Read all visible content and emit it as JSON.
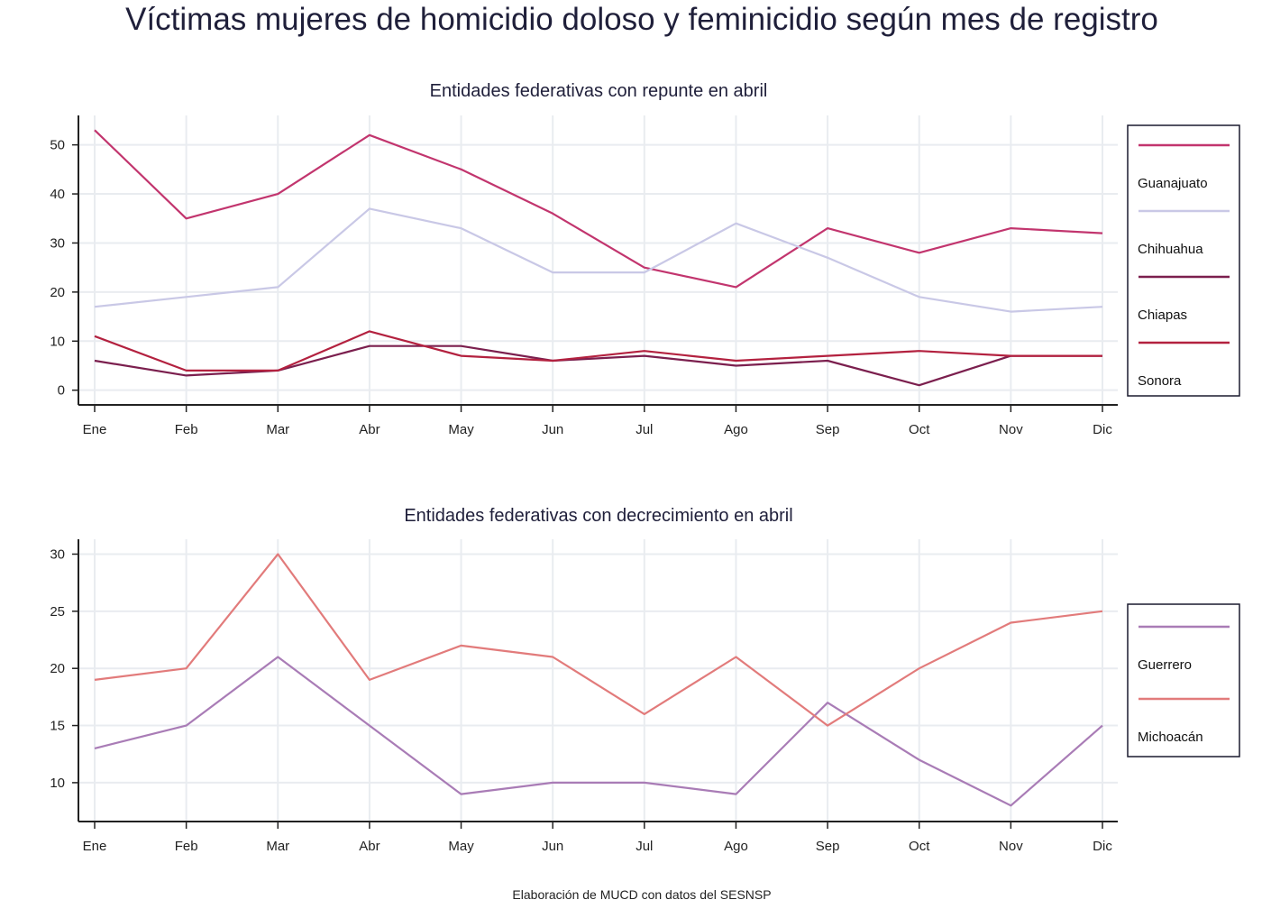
{
  "title": "Víctimas mujeres de homicidio doloso y feminicidio según mes de registro",
  "footer": "Elaboración de MUCD con datos del SESNSP",
  "chart_data": [
    {
      "type": "line",
      "title": "Entidades federativas con repunte en abril",
      "xlabel": "",
      "ylabel": "",
      "categories": [
        "Ene",
        "Feb",
        "Mar",
        "Abr",
        "May",
        "Jun",
        "Jul",
        "Ago",
        "Sep",
        "Oct",
        "Nov",
        "Dic"
      ],
      "ylim": [
        -3,
        56
      ],
      "yticks": [
        0,
        10,
        20,
        30,
        40,
        50
      ],
      "grid": true,
      "legend_position": "right",
      "series": [
        {
          "name": "Guanajuato",
          "color": "#c2356e",
          "values": [
            53,
            35,
            40,
            52,
            45,
            36,
            25,
            21,
            33,
            28,
            33,
            32
          ]
        },
        {
          "name": "Chihuahua",
          "color": "#c9c8e6",
          "values": [
            17,
            19,
            21,
            37,
            33,
            24,
            24,
            34,
            27,
            19,
            16,
            17
          ]
        },
        {
          "name": "Chiapas",
          "color": "#7b1f4e",
          "values": [
            6,
            3,
            4,
            9,
            9,
            6,
            7,
            5,
            6,
            1,
            7,
            7
          ]
        },
        {
          "name": "Sonora",
          "color": "#b3213f",
          "values": [
            11,
            4,
            4,
            12,
            7,
            6,
            8,
            6,
            7,
            8,
            7,
            7
          ]
        }
      ]
    },
    {
      "type": "line",
      "title": "Entidades federativas con decrecimiento en abril",
      "xlabel": "",
      "ylabel": "",
      "categories": [
        "Ene",
        "Feb",
        "Mar",
        "Abr",
        "May",
        "Jun",
        "Jul",
        "Ago",
        "Sep",
        "Oct",
        "Nov",
        "Dic"
      ],
      "ylim": [
        6.6,
        31.3
      ],
      "yticks": [
        10,
        15,
        20,
        25,
        30
      ],
      "grid": true,
      "legend_position": "right",
      "series": [
        {
          "name": "Guerrero",
          "color": "#a97cb6",
          "values": [
            13,
            15,
            21,
            15,
            9,
            10,
            10,
            9,
            17,
            12,
            8,
            15
          ]
        },
        {
          "name": "Michoacán",
          "color": "#e27b7b",
          "values": [
            19,
            20,
            30,
            19,
            22,
            21,
            16,
            21,
            15,
            20,
            24,
            25
          ]
        }
      ]
    }
  ]
}
